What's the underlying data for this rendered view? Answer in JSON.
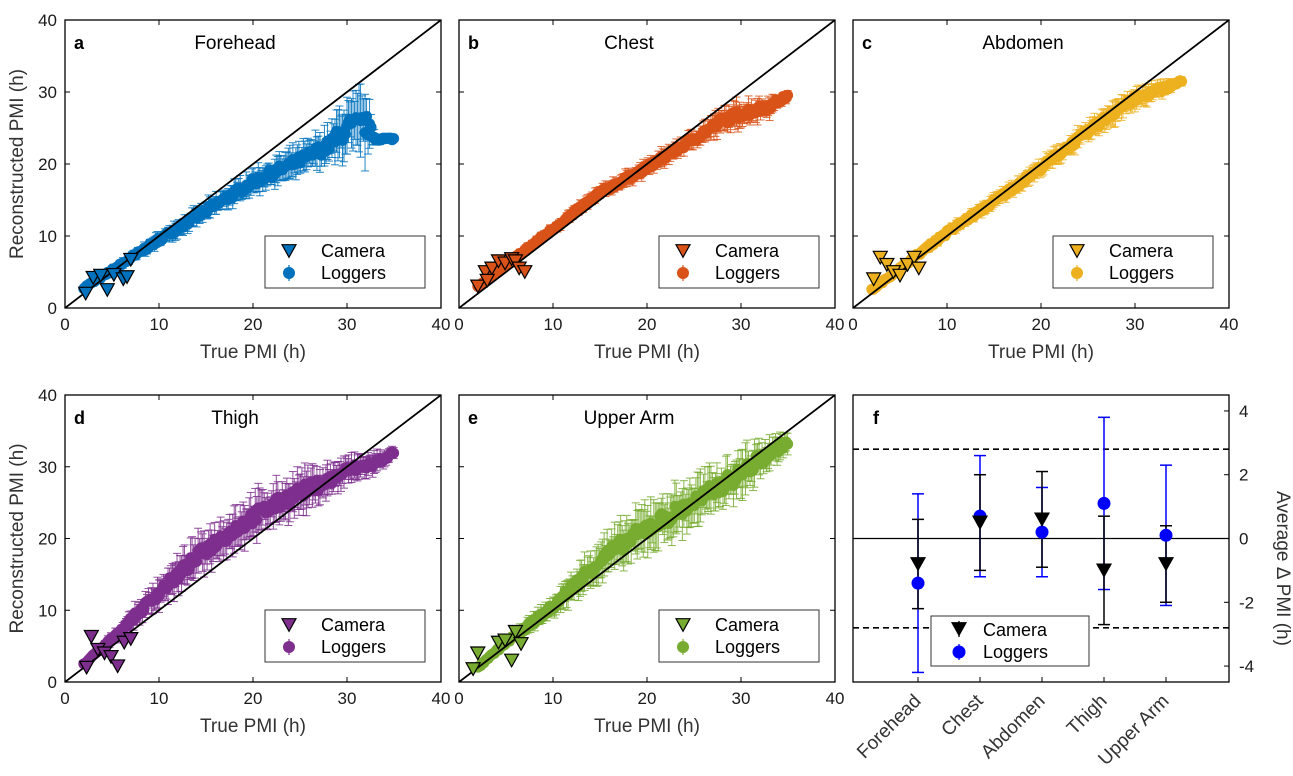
{
  "colors": {
    "forehead": "#0072BD",
    "chest": "#D95319",
    "abdomen": "#EDB120",
    "thigh": "#7E2F8E",
    "upper_arm": "#77AC30",
    "camera_black": "#000000",
    "loggers_blue": "#0000FF"
  },
  "chart_data": [
    {
      "id": "a",
      "type": "scatter",
      "title": "Forehead",
      "color_key": "forehead",
      "xlabel": "True PMI (h)",
      "ylabel": "Reconstructed PMI (h)",
      "xlim": [
        0,
        40
      ],
      "ylim": [
        0,
        40
      ],
      "xticks": [
        0,
        10,
        20,
        30,
        40
      ],
      "yticks": [
        0,
        10,
        20,
        30,
        40
      ],
      "legend": [
        "Camera",
        "Loggers"
      ],
      "loggers_trend": [
        [
          2,
          2.8,
          0.4
        ],
        [
          5,
          5.2,
          0.6
        ],
        [
          10,
          9.5,
          1.0
        ],
        [
          15,
          13.5,
          1.4
        ],
        [
          20,
          17.5,
          1.8
        ],
        [
          25,
          20.5,
          2.2
        ],
        [
          28,
          22.5,
          2.8
        ],
        [
          30,
          25.0,
          4.5
        ],
        [
          32,
          25.5,
          5.0
        ],
        [
          33,
          23.5,
          0.8
        ],
        [
          35,
          23.5,
          0.5
        ]
      ],
      "camera_points": [
        [
          2.2,
          2.0
        ],
        [
          3.0,
          4.2
        ],
        [
          3.8,
          4.5
        ],
        [
          4.5,
          2.5
        ],
        [
          5.2,
          4.6
        ],
        [
          6.2,
          4.0
        ],
        [
          7.0,
          6.7
        ],
        [
          6.6,
          4.3
        ]
      ]
    },
    {
      "id": "b",
      "type": "scatter",
      "title": "Chest",
      "color_key": "chest",
      "xlabel": "True PMI (h)",
      "ylabel": "",
      "xlim": [
        0,
        40
      ],
      "ylim": [
        0,
        40
      ],
      "xticks": [
        0,
        10,
        20,
        30,
        40
      ],
      "yticks": [],
      "legend": [
        "Camera",
        "Loggers"
      ],
      "loggers_trend": [
        [
          2,
          3.0,
          0.3
        ],
        [
          5,
          6.0,
          0.5
        ],
        [
          10,
          11.0,
          0.8
        ],
        [
          15,
          16.0,
          1.0
        ],
        [
          20,
          19.5,
          1.2
        ],
        [
          25,
          23.5,
          1.4
        ],
        [
          28,
          26.0,
          1.8
        ],
        [
          30,
          27.0,
          2.0
        ],
        [
          33,
          28.0,
          1.5
        ],
        [
          35,
          29.5,
          0.7
        ]
      ],
      "camera_points": [
        [
          2.0,
          3.0
        ],
        [
          2.8,
          5.0
        ],
        [
          3.5,
          5.5
        ],
        [
          4.2,
          6.5
        ],
        [
          4.9,
          6.2
        ],
        [
          5.6,
          6.8
        ],
        [
          6.0,
          6.5
        ],
        [
          6.4,
          5.5
        ],
        [
          7.0,
          5.0
        ],
        [
          3.0,
          3.8
        ]
      ]
    },
    {
      "id": "c",
      "type": "scatter",
      "title": "Abdomen",
      "color_key": "abdomen",
      "xlabel": "True PMI (h)",
      "ylabel": "",
      "xlim": [
        0,
        40
      ],
      "ylim": [
        0,
        40
      ],
      "xticks": [
        0,
        10,
        20,
        30,
        40
      ],
      "yticks": [],
      "legend": [
        "Camera",
        "Loggers"
      ],
      "loggers_trend": [
        [
          2,
          2.5,
          0.3
        ],
        [
          5,
          5.5,
          0.5
        ],
        [
          10,
          10.5,
          0.8
        ],
        [
          15,
          14.8,
          1.0
        ],
        [
          20,
          19.5,
          1.2
        ],
        [
          25,
          24.5,
          1.5
        ],
        [
          28,
          27.5,
          1.8
        ],
        [
          30,
          29.0,
          1.5
        ],
        [
          33,
          30.5,
          1.2
        ],
        [
          35,
          31.5,
          0.6
        ]
      ],
      "camera_points": [
        [
          2.2,
          4.0
        ],
        [
          2.9,
          7.0
        ],
        [
          3.6,
          6.0
        ],
        [
          4.3,
          5.0
        ],
        [
          5.0,
          4.5
        ],
        [
          5.8,
          6.0
        ],
        [
          6.5,
          7.0
        ],
        [
          7.0,
          5.5
        ]
      ]
    },
    {
      "id": "d",
      "type": "scatter",
      "title": "Thigh",
      "color_key": "thigh",
      "xlabel": "True PMI (h)",
      "ylabel": "Reconstructed PMI (h)",
      "xlim": [
        0,
        40
      ],
      "ylim": [
        0,
        40
      ],
      "xticks": [
        0,
        10,
        20,
        30,
        40
      ],
      "yticks": [
        0,
        10,
        20,
        30,
        40
      ],
      "legend": [
        "Camera",
        "Loggers"
      ],
      "loggers_trend": [
        [
          2,
          2.5,
          0.3
        ],
        [
          5,
          6.0,
          0.8
        ],
        [
          10,
          12.5,
          2.2
        ],
        [
          15,
          18.5,
          3.0
        ],
        [
          20,
          23.0,
          3.2
        ],
        [
          25,
          26.5,
          3.0
        ],
        [
          28,
          28.0,
          2.5
        ],
        [
          30,
          29.5,
          2.0
        ],
        [
          33,
          30.5,
          1.5
        ],
        [
          35,
          32.0,
          0.8
        ]
      ],
      "camera_points": [
        [
          2.3,
          2.0
        ],
        [
          2.8,
          6.3
        ],
        [
          3.5,
          4.5
        ],
        [
          4.2,
          4.0
        ],
        [
          4.9,
          3.5
        ],
        [
          5.6,
          2.2
        ],
        [
          6.3,
          5.5
        ],
        [
          7.0,
          6.0
        ]
      ]
    },
    {
      "id": "e",
      "type": "scatter",
      "title": "Upper Arm",
      "color_key": "upper_arm",
      "xlabel": "True PMI (h)",
      "ylabel": "",
      "xlim": [
        0,
        40
      ],
      "ylim": [
        0,
        40
      ],
      "xticks": [
        0,
        10,
        20,
        30,
        40
      ],
      "yticks": [],
      "legend": [
        "Camera",
        "Loggers"
      ],
      "loggers_trend": [
        [
          2,
          2.0,
          0.3
        ],
        [
          5,
          5.5,
          0.6
        ],
        [
          10,
          10.5,
          1.5
        ],
        [
          15,
          17.0,
          3.0
        ],
        [
          20,
          21.5,
          3.5
        ],
        [
          25,
          25.0,
          3.5
        ],
        [
          28,
          27.5,
          3.5
        ],
        [
          30,
          29.0,
          3.5
        ],
        [
          32,
          31.0,
          3.0
        ],
        [
          35,
          33.5,
          1.5
        ]
      ],
      "camera_points": [
        [
          1.5,
          1.8
        ],
        [
          2.0,
          4.0
        ],
        [
          4.2,
          5.5
        ],
        [
          4.9,
          5.8
        ],
        [
          5.6,
          3.0
        ],
        [
          6.0,
          7.0
        ],
        [
          6.6,
          5.3
        ]
      ]
    },
    {
      "id": "f",
      "type": "scatter",
      "title": "",
      "categories": [
        "Forehead",
        "Chest",
        "Abdomen",
        "Thigh",
        "Upper Arm"
      ],
      "ylabel": "Average Δ PMI (h)",
      "ylim": [
        -4.5,
        4.5
      ],
      "yticks": [
        -4,
        -2,
        0,
        2,
        4
      ],
      "reference_lines": [
        2.8,
        -2.8
      ],
      "legend": [
        "Camera",
        "Loggers"
      ],
      "series": [
        {
          "name": "Camera",
          "values": [
            -0.8,
            0.5,
            0.6,
            -1.0,
            -0.8
          ],
          "errors": [
            1.4,
            1.5,
            1.5,
            1.7,
            1.2
          ]
        },
        {
          "name": "Loggers",
          "values": [
            -1.4,
            0.7,
            0.2,
            1.1,
            0.1
          ],
          "errors": [
            2.8,
            1.9,
            1.4,
            2.7,
            2.2
          ]
        }
      ]
    }
  ]
}
